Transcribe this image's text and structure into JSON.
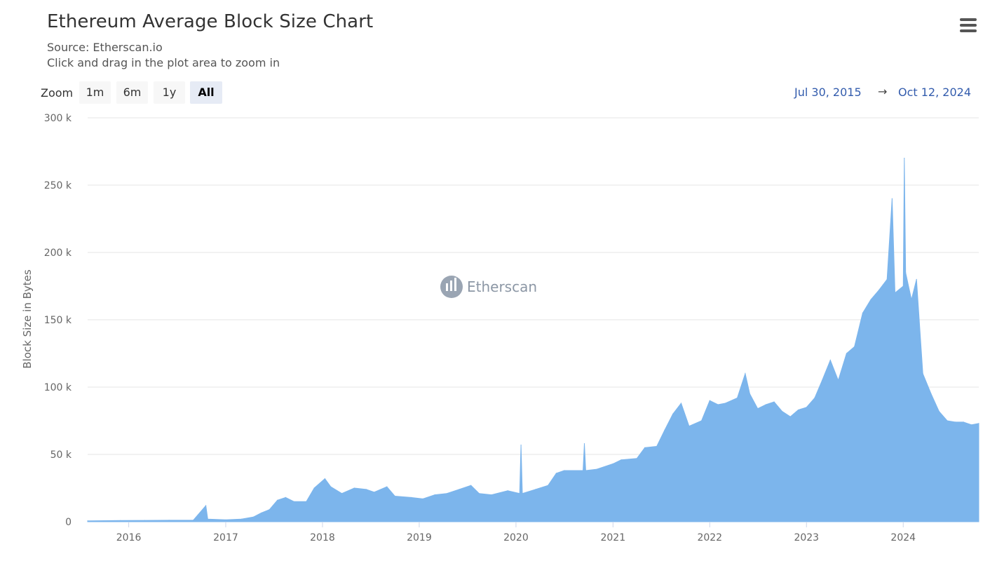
{
  "header": {
    "title": "Ethereum Average Block Size Chart",
    "source": "Source: Etherscan.io",
    "hint": "Click and drag in the plot area to zoom in",
    "menu_icon": "hamburger-menu-icon"
  },
  "zoom": {
    "label": "Zoom",
    "buttons": [
      "1m",
      "6m",
      "1y",
      "All"
    ],
    "active": "All"
  },
  "range": {
    "from": "Jul 30, 2015",
    "arrow": "→",
    "to": "Oct 12, 2024"
  },
  "watermark": {
    "text": "Etherscan"
  },
  "colors": {
    "series": "#7cb5ec",
    "grid": "#e6e6e6",
    "range_text": "#335cad"
  },
  "chart_data": {
    "type": "area",
    "title": "Ethereum Average Block Size Chart",
    "subtitle": "Source: Etherscan.io",
    "ylabel": "Block Size in Bytes",
    "xlabel": "",
    "ylim": [
      0,
      300000
    ],
    "yticks": [
      0,
      50000,
      100000,
      150000,
      200000,
      250000,
      300000
    ],
    "ytick_labels": [
      "0",
      "50 k",
      "100 k",
      "150 k",
      "200 k",
      "250 k",
      "300 k"
    ],
    "xticks": [
      "2016",
      "2017",
      "2018",
      "2019",
      "2020",
      "2021",
      "2022",
      "2023",
      "2024"
    ],
    "xlim": [
      "2015-07-30",
      "2024-10-12"
    ],
    "grid": true,
    "legend": "none",
    "series": [
      {
        "name": "Block Size in Bytes",
        "points": [
          [
            "2015-07-30",
            600
          ],
          [
            "2015-12-01",
            900
          ],
          [
            "2016-03-01",
            1000
          ],
          [
            "2016-06-01",
            1100
          ],
          [
            "2016-09-01",
            1200
          ],
          [
            "2016-10-18",
            12000
          ],
          [
            "2016-10-25",
            2000
          ],
          [
            "2017-01-01",
            1400
          ],
          [
            "2017-03-01",
            2000
          ],
          [
            "2017-04-15",
            3500
          ],
          [
            "2017-05-15",
            6500
          ],
          [
            "2017-06-15",
            9000
          ],
          [
            "2017-07-15",
            16000
          ],
          [
            "2017-08-15",
            18000
          ],
          [
            "2017-09-15",
            15000
          ],
          [
            "2017-11-01",
            15000
          ],
          [
            "2017-12-01",
            25000
          ],
          [
            "2018-01-10",
            32000
          ],
          [
            "2018-02-01",
            26000
          ],
          [
            "2018-03-15",
            21000
          ],
          [
            "2018-05-01",
            25000
          ],
          [
            "2018-06-15",
            24000
          ],
          [
            "2018-07-15",
            22000
          ],
          [
            "2018-09-01",
            26000
          ],
          [
            "2018-10-01",
            19000
          ],
          [
            "2018-12-01",
            18000
          ],
          [
            "2019-01-15",
            17000
          ],
          [
            "2019-03-01",
            20000
          ],
          [
            "2019-04-15",
            21000
          ],
          [
            "2019-06-01",
            24000
          ],
          [
            "2019-07-15",
            27000
          ],
          [
            "2019-08-15",
            21000
          ],
          [
            "2019-10-01",
            20000
          ],
          [
            "2019-12-01",
            23000
          ],
          [
            "2020-01-15",
            21000
          ],
          [
            "2020-01-20",
            57000
          ],
          [
            "2020-01-25",
            21000
          ],
          [
            "2020-03-15",
            24000
          ],
          [
            "2020-05-01",
            27000
          ],
          [
            "2020-06-01",
            36000
          ],
          [
            "2020-07-01",
            38000
          ],
          [
            "2020-09-10",
            38000
          ],
          [
            "2020-09-15",
            58000
          ],
          [
            "2020-09-20",
            38000
          ],
          [
            "2020-11-01",
            39000
          ],
          [
            "2021-01-01",
            43000
          ],
          [
            "2021-02-01",
            46000
          ],
          [
            "2021-04-01",
            47000
          ],
          [
            "2021-05-01",
            55000
          ],
          [
            "2021-06-15",
            56000
          ],
          [
            "2021-07-15",
            68000
          ],
          [
            "2021-08-15",
            80000
          ],
          [
            "2021-09-15",
            88000
          ],
          [
            "2021-10-15",
            71000
          ],
          [
            "2021-12-01",
            75000
          ],
          [
            "2022-01-01",
            90000
          ],
          [
            "2022-02-01",
            87000
          ],
          [
            "2022-03-01",
            88000
          ],
          [
            "2022-04-15",
            92000
          ],
          [
            "2022-05-15",
            110000
          ],
          [
            "2022-06-01",
            95000
          ],
          [
            "2022-07-01",
            84000
          ],
          [
            "2022-08-01",
            87000
          ],
          [
            "2022-09-01",
            89000
          ],
          [
            "2022-10-01",
            82000
          ],
          [
            "2022-11-01",
            78000
          ],
          [
            "2022-12-01",
            83000
          ],
          [
            "2023-01-01",
            85000
          ],
          [
            "2023-02-01",
            92000
          ],
          [
            "2023-03-01",
            105000
          ],
          [
            "2023-04-01",
            120000
          ],
          [
            "2023-05-01",
            105000
          ],
          [
            "2023-06-01",
            125000
          ],
          [
            "2023-07-01",
            130000
          ],
          [
            "2023-08-01",
            155000
          ],
          [
            "2023-09-01",
            165000
          ],
          [
            "2023-10-01",
            172000
          ],
          [
            "2023-11-01",
            180000
          ],
          [
            "2023-11-20",
            240000
          ],
          [
            "2023-12-01",
            170000
          ],
          [
            "2024-01-01",
            175000
          ],
          [
            "2024-01-05",
            270000
          ],
          [
            "2024-01-10",
            185000
          ],
          [
            "2024-02-01",
            165000
          ],
          [
            "2024-02-20",
            180000
          ],
          [
            "2024-03-15",
            110000
          ],
          [
            "2024-04-15",
            95000
          ],
          [
            "2024-05-15",
            82000
          ],
          [
            "2024-06-15",
            75000
          ],
          [
            "2024-07-15",
            74000
          ],
          [
            "2024-08-15",
            74000
          ],
          [
            "2024-09-15",
            72000
          ],
          [
            "2024-10-12",
            73000
          ]
        ]
      }
    ]
  }
}
